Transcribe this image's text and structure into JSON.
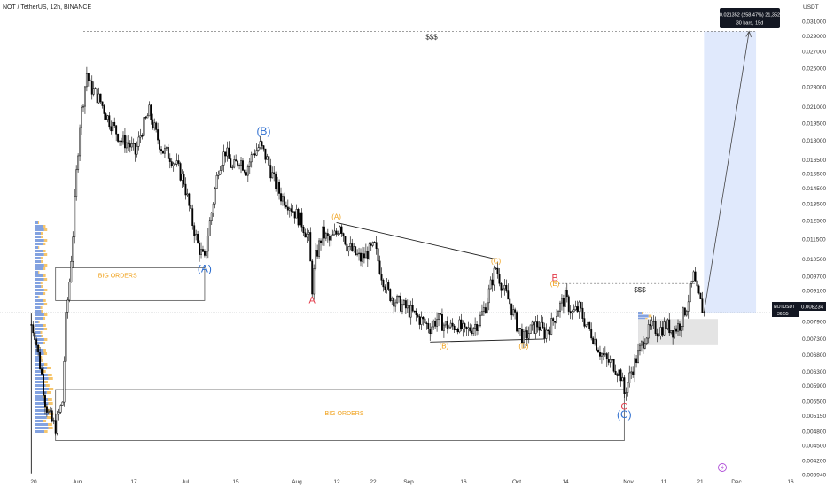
{
  "header": {
    "symbol": "NOT / TetherUS, 12h, BINANCE"
  },
  "currency_label": "USDT",
  "price_tag": {
    "symbol": "NOTUSDT",
    "price": "0.008234",
    "timer": "36:55"
  },
  "measure": {
    "line1": "0.021352 (258.47%) 21,352",
    "line2": "30 bars, 15d"
  },
  "event_icon": "lightning-icon",
  "colors": {
    "up": "#ffffff",
    "down": "#000000",
    "wick": "#000000",
    "blue_wave": "#2f6fd0",
    "red_wave": "#e23a48",
    "orange_wave": "#f0a018",
    "projection": "#dbe5fb",
    "volume_profile": "#5a83d6"
  },
  "chart_data": {
    "type": "candlestick",
    "scale": "log",
    "ylim": [
      0.00394,
      0.0336
    ],
    "y_ticks": [
      "0.031000",
      "0.029000",
      "0.027000",
      "0.025000",
      "0.023000",
      "0.021000",
      "0.019500",
      "0.018000",
      "0.016500",
      "0.015500",
      "0.014500",
      "0.013500",
      "0.012500",
      "0.011500",
      "0.010500",
      "0.009700",
      "0.009100",
      "0.008500",
      "0.007900",
      "0.007300",
      "0.006800",
      "0.006300",
      "0.005900",
      "0.005500",
      "0.005150",
      "0.004800",
      "0.004500",
      "0.004200",
      "0.003940"
    ],
    "x_ticks": [
      "20",
      "Jun",
      "17",
      "Jul",
      "15",
      "Aug",
      "12",
      "22",
      "Sep",
      "16",
      "Oct",
      "14",
      "Nov",
      "11",
      "21",
      "Dec",
      "16"
    ],
    "path": [
      [
        "2024-05-16",
        0.0078
      ],
      [
        "2024-05-17",
        0.0075
      ],
      [
        "2024-05-18",
        0.0068
      ],
      [
        "2024-05-19",
        0.0062
      ],
      [
        "2024-05-20",
        0.0055
      ],
      [
        "2024-05-21",
        0.0052
      ],
      [
        "2024-05-22",
        0.005
      ],
      [
        "2024-05-23",
        0.0049
      ],
      [
        "2024-05-24",
        0.0052
      ],
      [
        "2024-05-25",
        0.0055
      ],
      [
        "2024-05-26",
        0.008
      ],
      [
        "2024-05-27",
        0.0095
      ],
      [
        "2024-05-28",
        0.0118
      ],
      [
        "2024-05-29",
        0.0155
      ],
      [
        "2024-05-30",
        0.0195
      ],
      [
        "2024-05-31",
        0.0218
      ],
      [
        "2024-06-01",
        0.0245
      ],
      [
        "2024-06-02",
        0.023
      ],
      [
        "2024-06-03",
        0.0226
      ],
      [
        "2024-06-05",
        0.0215
      ],
      [
        "2024-06-07",
        0.02
      ],
      [
        "2024-06-09",
        0.019
      ],
      [
        "2024-06-11",
        0.018
      ],
      [
        "2024-06-13",
        0.0178
      ],
      [
        "2024-06-15",
        0.017
      ],
      [
        "2024-06-17",
        0.019
      ],
      [
        "2024-06-19",
        0.0205
      ],
      [
        "2024-06-21",
        0.0185
      ],
      [
        "2024-06-23",
        0.0172
      ],
      [
        "2024-06-25",
        0.0168
      ],
      [
        "2024-06-27",
        0.016
      ],
      [
        "2024-06-29",
        0.015
      ],
      [
        "2024-07-01",
        0.0128
      ],
      [
        "2024-07-03",
        0.0112
      ],
      [
        "2024-07-05",
        0.0104
      ],
      [
        "2024-07-06",
        0.0118
      ],
      [
        "2024-07-07",
        0.013
      ],
      [
        "2024-07-09",
        0.016
      ],
      [
        "2024-07-11",
        0.0172
      ],
      [
        "2024-07-13",
        0.0158
      ],
      [
        "2024-07-15",
        0.0166
      ],
      [
        "2024-07-17",
        0.0158
      ],
      [
        "2024-07-19",
        0.017
      ],
      [
        "2024-07-21",
        0.0176
      ],
      [
        "2024-07-23",
        0.0165
      ],
      [
        "2024-07-25",
        0.015
      ],
      [
        "2024-07-27",
        0.014
      ],
      [
        "2024-07-29",
        0.0136
      ],
      [
        "2024-07-31",
        0.013
      ],
      [
        "2024-08-02",
        0.0124
      ],
      [
        "2024-08-04",
        0.0115
      ],
      [
        "2024-08-05",
        0.0092
      ],
      [
        "2024-08-06",
        0.0106
      ],
      [
        "2024-08-08",
        0.0118
      ],
      [
        "2024-08-10",
        0.0114
      ],
      [
        "2024-08-12",
        0.0118
      ],
      [
        "2024-08-13",
        0.0124
      ],
      [
        "2024-08-15",
        0.0112
      ],
      [
        "2024-08-17",
        0.0108
      ],
      [
        "2024-08-19",
        0.0105
      ],
      [
        "2024-08-21",
        0.0108
      ],
      [
        "2024-08-23",
        0.0111
      ],
      [
        "2024-08-25",
        0.0098
      ],
      [
        "2024-08-27",
        0.009
      ],
      [
        "2024-08-29",
        0.0087
      ],
      [
        "2024-08-31",
        0.0085
      ],
      [
        "2024-09-02",
        0.0083
      ],
      [
        "2024-09-04",
        0.0081
      ],
      [
        "2024-09-06",
        0.0079
      ],
      [
        "2024-09-08",
        0.0077
      ],
      [
        "2024-09-10",
        0.008
      ],
      [
        "2024-09-12",
        0.0078
      ],
      [
        "2024-09-14",
        0.0077
      ],
      [
        "2024-09-16",
        0.0078
      ],
      [
        "2024-09-18",
        0.0075
      ],
      [
        "2024-09-20",
        0.0077
      ],
      [
        "2024-09-22",
        0.0079
      ],
      [
        "2024-09-24",
        0.0085
      ],
      [
        "2024-09-26",
        0.0096
      ],
      [
        "2024-09-27",
        0.0101
      ],
      [
        "2024-09-29",
        0.0092
      ],
      [
        "2024-10-01",
        0.0086
      ],
      [
        "2024-10-03",
        0.0078
      ],
      [
        "2024-10-05",
        0.0073
      ],
      [
        "2024-10-07",
        0.0076
      ],
      [
        "2024-10-09",
        0.0078
      ],
      [
        "2024-10-11",
        0.0075
      ],
      [
        "2024-10-13",
        0.0078
      ],
      [
        "2024-10-15",
        0.0084
      ],
      [
        "2024-10-17",
        0.0088
      ],
      [
        "2024-10-19",
        0.0082
      ],
      [
        "2024-10-21",
        0.0084
      ],
      [
        "2024-10-23",
        0.0078
      ],
      [
        "2024-10-25",
        0.0074
      ],
      [
        "2024-10-27",
        0.0069
      ],
      [
        "2024-10-29",
        0.0066
      ],
      [
        "2024-10-31",
        0.0065
      ],
      [
        "2024-11-02",
        0.0062
      ],
      [
        "2024-11-03",
        0.0057
      ],
      [
        "2024-11-05",
        0.0063
      ],
      [
        "2024-11-07",
        0.0068
      ],
      [
        "2024-11-09",
        0.0074
      ],
      [
        "2024-11-11",
        0.0077
      ],
      [
        "2024-11-13",
        0.0076
      ],
      [
        "2024-11-15",
        0.0078
      ],
      [
        "2024-11-17",
        0.0076
      ],
      [
        "2024-11-19",
        0.0078
      ],
      [
        "2024-11-21",
        0.0085
      ],
      [
        "2024-11-23",
        0.0097
      ],
      [
        "2024-11-24",
        0.009
      ],
      [
        "2024-11-26",
        0.0082
      ]
    ],
    "annotations": {
      "waves_blue": [
        [
          "(A)",
          "2024-07-05",
          0.0099
        ],
        [
          "(B)",
          "2024-07-22",
          0.0185
        ],
        [
          "(C)",
          "2024-11-03",
          0.0051
        ]
      ],
      "waves_red": [
        [
          "A",
          "2024-08-05",
          0.0086
        ],
        [
          "B",
          "2024-10-14",
          0.0095
        ],
        [
          "C",
          "2024-11-03",
          0.0053
        ]
      ],
      "waves_orange": [
        [
          "(A)",
          "2024-08-12",
          0.0126
        ],
        [
          "(B)",
          "2024-09-12",
          0.007
        ],
        [
          "(C)",
          "2024-09-27",
          0.0103
        ],
        [
          "(D)",
          "2024-10-05",
          0.007
        ],
        [
          "(E)",
          "2024-10-14",
          0.0093
        ]
      ],
      "boxes": [
        {
          "label": "BIG ORDERS",
          "x0": "2024-05-23",
          "x1": "2024-07-05",
          "y0": 0.0087,
          "y1": 0.0101
        },
        {
          "label": "BIG ORDERS",
          "x0": "2024-05-23",
          "x1": "2024-11-03",
          "y0": 0.0046,
          "y1": 0.0058
        }
      ],
      "targets": [
        {
          "label": "$$$",
          "x0": "2024-05-31",
          "x1": "2024-12-11",
          "y": 0.0296
        },
        {
          "label": "$$$",
          "x0": "2024-10-14",
          "x1": "2024-11-24",
          "y": 0.0094
        }
      ],
      "triangle_lines": [
        [
          [
            "2024-08-12",
            0.0124
          ],
          [
            "2024-09-27",
            0.0105
          ]
        ],
        [
          [
            "2024-09-08",
            0.0072
          ],
          [
            "2024-10-11",
            0.0073
          ]
        ]
      ],
      "current_price": 0.008234
    }
  }
}
